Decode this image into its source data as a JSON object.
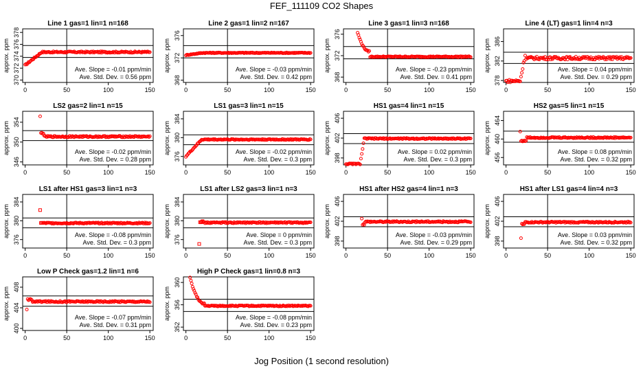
{
  "title": "FEF_111109  CO2 Shapes",
  "xlabel": "Jog Position (1 second resolution)",
  "ylabel": "approx. ppm",
  "slope_prefix": "Ave. Slope =",
  "slope_unit": "ppm/min",
  "std_prefix": "Ave. Std. Dev. =",
  "std_unit": "ppm",
  "colors": {
    "points": "#ff0000",
    "axes": "#000000"
  },
  "chart_data": [
    {
      "type": "scatter",
      "title": "Line 1 gas=1 lin=1 n=168",
      "ylim": [
        369.6,
        378.6
      ],
      "yticks": [
        370,
        372,
        374,
        376,
        378
      ],
      "hlines": [
        373.8,
        375.8
      ],
      "slope": "-0.01",
      "std": "0.56",
      "profile": {
        "kind": "rise",
        "start": 0,
        "end": 20,
        "from": 372.5,
        "to": 374.7,
        "plateau": 374.7,
        "noise": 0.12,
        "marker": "circle"
      }
    },
    {
      "type": "scatter",
      "title": "Line 2 gas=1 lin=2 n=167",
      "ylim": [
        367.6,
        377.2
      ],
      "yticks": [
        368,
        372,
        376
      ],
      "hlines": [
        372.0,
        374.2
      ],
      "slope": "-0.03",
      "std": "0.42",
      "profile": {
        "kind": "rise",
        "start": 0,
        "end": 20,
        "from": 372.5,
        "to": 372.9,
        "plateau": 372.9,
        "noise": 0.08,
        "marker": "circle"
      }
    },
    {
      "type": "scatter",
      "title": "Line 3 gas=1 lin=3 n=168",
      "ylim": [
        367.0,
        377.0
      ],
      "yticks": [
        368,
        372,
        376
      ],
      "hlines": [
        371.4,
        373.7
      ],
      "slope": "-0.23",
      "std": "0.41",
      "profile": {
        "kind": "decay",
        "start": 14,
        "end": 28,
        "from": 376.3,
        "to": 372.8,
        "plateau": 371.8,
        "noise": 0.1,
        "marker": "circle"
      }
    },
    {
      "type": "scatter",
      "title": "Line 4 (LT) gas=1 lin=4 n=3",
      "ylim": [
        377.6,
        388.6
      ],
      "yticks": [
        378,
        382,
        386
      ],
      "hlines": [
        381.5,
        383.8
      ],
      "slope": "0.04",
      "std": "0.29",
      "profile": {
        "kind": "rise",
        "start": 17,
        "end": 23,
        "from": 377.9,
        "to": 383.2,
        "plateau": 382.6,
        "noise": 0.3,
        "marker": "circle"
      }
    },
    {
      "type": "scatter",
      "title": "LS2 gas=2 lin=1 n=15",
      "ylim": [
        345.4,
        356.2
      ],
      "yticks": [
        346,
        350,
        354
      ],
      "hlines": [
        350.3,
        352.3
      ],
      "slope": "-0.02",
      "std": "0.28",
      "profile": {
        "kind": "outlier",
        "start": 18,
        "end": 22,
        "from": 355.1,
        "to": 351.8,
        "plateau": 351.1,
        "noise": 0.15,
        "marker": "circle"
      }
    },
    {
      "type": "scatter",
      "title": "LS1 gas=3 lin=1 n=15",
      "ylim": [
        374.2,
        385.6
      ],
      "yticks": [
        376,
        380,
        384
      ],
      "hlines": [
        378.5,
        380.6
      ],
      "slope": "-0.02",
      "std": "0.3",
      "profile": {
        "kind": "step",
        "start": 0,
        "end": 19,
        "from": 376.0,
        "to": 379.6,
        "plateau": 379.6,
        "noise": 0.12,
        "marker": "circle"
      }
    },
    {
      "type": "scatter",
      "title": "HS1 gas=4 lin=1 n=15",
      "ylim": [
        396.6,
        407.4
      ],
      "yticks": [
        398,
        402,
        406
      ],
      "hlines": [
        400.9,
        402.9
      ],
      "slope": "0.02",
      "std": "0.3",
      "profile": {
        "kind": "rise",
        "start": 17,
        "end": 22,
        "from": 396.8,
        "to": 401.9,
        "plateau": 401.9,
        "noise": 0.12,
        "marker": "circle"
      }
    },
    {
      "type": "scatter",
      "title": "HS2 gas=5 lin=1 n=15",
      "ylim": [
        454.4,
        466.0
      ],
      "yticks": [
        456,
        460,
        464
      ],
      "hlines": [
        459.3,
        461.7
      ],
      "slope": "0.08",
      "std": "0.32",
      "profile": {
        "kind": "outlier",
        "start": 17,
        "end": 24,
        "from": 461.6,
        "to": 459.6,
        "plateau": 460.3,
        "noise": 0.14,
        "marker": "circle"
      }
    },
    {
      "type": "scatter",
      "title": "LS1 after HS1 gas=3 lin=1 n=3",
      "ylim": [
        374.2,
        385.6
      ],
      "yticks": [
        376,
        380,
        384
      ],
      "hlines": [
        378.5,
        380.6
      ],
      "slope": "-0.08",
      "std": "0.3",
      "profile": {
        "kind": "outlier",
        "start": 18,
        "end": 20,
        "from": 382.2,
        "to": 379.6,
        "plateau": 379.5,
        "noise": 0.13,
        "marker": "square"
      }
    },
    {
      "type": "scatter",
      "title": "LS1 after LS2 gas=3 lin=1 n=3",
      "ylim": [
        374.2,
        385.6
      ],
      "yticks": [
        376,
        380,
        384
      ],
      "hlines": [
        378.5,
        380.6
      ],
      "slope": "0",
      "std": "0.3",
      "profile": {
        "kind": "dip",
        "start": 16,
        "end": 20,
        "from": 375.2,
        "to": 379.8,
        "plateau": 379.6,
        "noise": 0.14,
        "marker": "square"
      }
    },
    {
      "type": "scatter",
      "title": "HS1 after HS2 gas=4 lin=1 n=3",
      "ylim": [
        396.6,
        407.4
      ],
      "yticks": [
        398,
        402,
        406
      ],
      "hlines": [
        400.9,
        402.9
      ],
      "slope": "-0.03",
      "std": "0.29",
      "profile": {
        "kind": "outlier",
        "start": 19,
        "end": 22,
        "from": 402.6,
        "to": 401.4,
        "plateau": 401.9,
        "noise": 0.14,
        "marker": "circle"
      }
    },
    {
      "type": "scatter",
      "title": "HS1 after LS1 gas=4 lin=4 n=3",
      "ylim": [
        396.6,
        407.4
      ],
      "yticks": [
        398,
        402,
        406
      ],
      "hlines": [
        400.9,
        402.9
      ],
      "slope": "0.03",
      "std": "0.32",
      "profile": {
        "kind": "dip",
        "start": 18,
        "end": 22,
        "from": 398.6,
        "to": 401.4,
        "plateau": 401.8,
        "noise": 0.13,
        "marker": "circle"
      }
    },
    {
      "type": "scatter",
      "title": "Low P Check gas=1.2 lin=1 n=6",
      "ylim": [
        399.6,
        410.0
      ],
      "yticks": [
        400,
        404,
        408
      ],
      "hlines": [
        404.3,
        406.3
      ],
      "slope": "-0.07",
      "std": "0.31",
      "profile": {
        "kind": "outlier",
        "start": 2,
        "end": 8,
        "from": 403.6,
        "to": 405.6,
        "plateau": 405.2,
        "noise": 0.14,
        "marker": "circle"
      }
    },
    {
      "type": "scatter",
      "title": "High P Check gas=1 lin=0.8 n=3",
      "ylim": [
        351.4,
        361.0
      ],
      "yticks": [
        352,
        356,
        360
      ],
      "hlines": [
        354.8,
        357.0
      ],
      "slope": "-0.08",
      "std": "0.23",
      "profile": {
        "kind": "decay",
        "start": 5,
        "end": 22,
        "from": 360.8,
        "to": 356.2,
        "plateau": 355.8,
        "noise": 0.1,
        "marker": "circle"
      }
    }
  ],
  "xlim": [
    -3,
    154
  ],
  "xticks": [
    0,
    50,
    100,
    150
  ],
  "vline": 50,
  "x_start": 0,
  "x_end": 150
}
